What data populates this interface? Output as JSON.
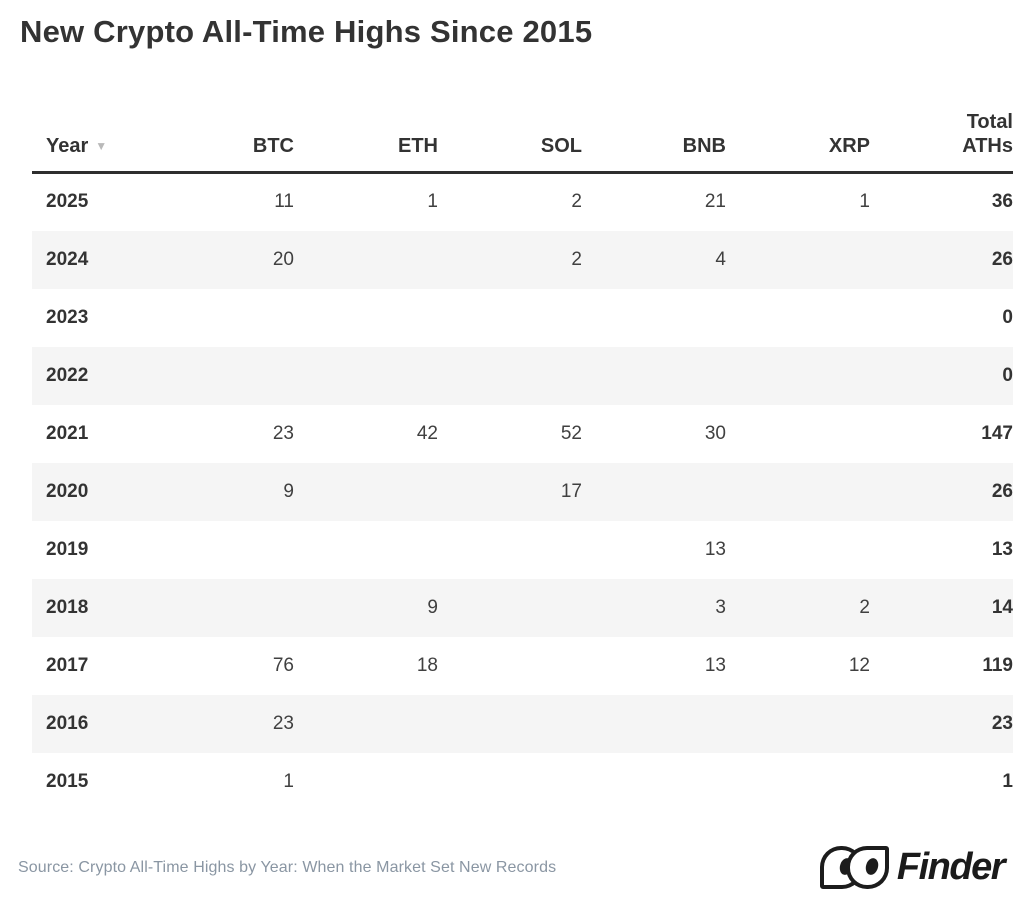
{
  "title": "New Crypto All-Time Highs Since 2015",
  "chart_data": {
    "type": "table",
    "title": "New Crypto All-Time Highs Since 2015",
    "columns": [
      "Year",
      "BTC",
      "ETH",
      "SOL",
      "BNB",
      "XRP",
      "Total ATHs"
    ],
    "sort": {
      "column": "Year",
      "direction": "descending"
    },
    "rows": [
      [
        "2025",
        "11",
        "1",
        "2",
        "21",
        "1",
        "36"
      ],
      [
        "2024",
        "20",
        "",
        "2",
        "4",
        "",
        "26"
      ],
      [
        "2023",
        "",
        "",
        "",
        "",
        "",
        "0"
      ],
      [
        "2022",
        "",
        "",
        "",
        "",
        "",
        "0"
      ],
      [
        "2021",
        "23",
        "42",
        "52",
        "30",
        "",
        "147"
      ],
      [
        "2020",
        "9",
        "",
        "17",
        "",
        "",
        "26"
      ],
      [
        "2019",
        "",
        "",
        "",
        "13",
        "",
        "13"
      ],
      [
        "2018",
        "",
        "9",
        "",
        "3",
        "2",
        "14"
      ],
      [
        "2017",
        "76",
        "18",
        "",
        "13",
        "12",
        "119"
      ],
      [
        "2016",
        "23",
        "",
        "",
        "",
        "",
        "23"
      ],
      [
        "2015",
        "1",
        "",
        "",
        "",
        "",
        "1"
      ]
    ]
  },
  "header": {
    "year": "Year",
    "sort_icon": "▼",
    "btc": "BTC",
    "eth": "ETH",
    "sol": "SOL",
    "bnb": "BNB",
    "xrp": "XRP",
    "total_line1": "Total",
    "total_line2": "ATHs"
  },
  "footer": {
    "source": "Source: Crypto All-Time Highs by Year: When the Market Set New Records",
    "brand": "Finder"
  },
  "colors": {
    "title_text": "#333333",
    "header_text": "#333333",
    "body_text": "#404040",
    "row_stripe": "#f5f5f5",
    "header_border": "#2e2e2e",
    "sort_icon": "#b9b9b9",
    "source_text": "#8a96a3",
    "logo": "#1c1c1c"
  }
}
